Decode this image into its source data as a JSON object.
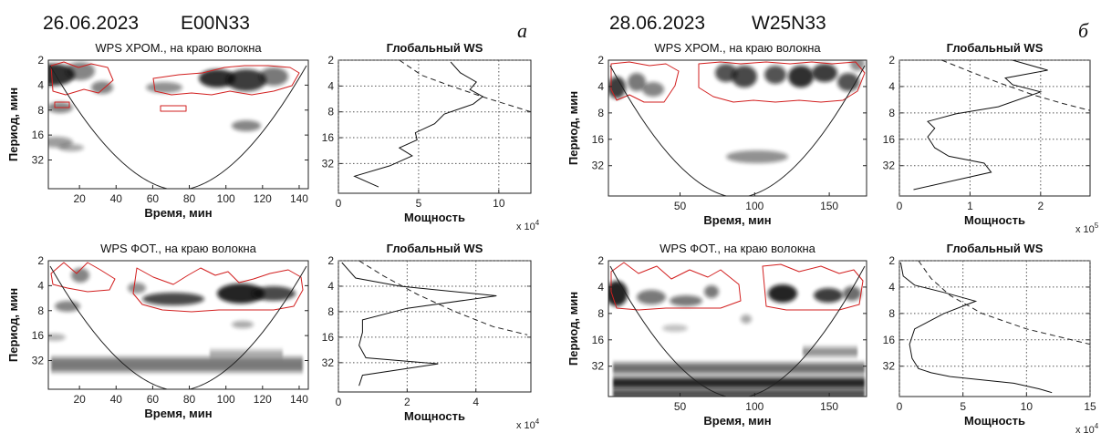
{
  "panels": [
    {
      "date": "26.06.2023",
      "region": "E00N33",
      "letter": "а",
      "wps": [
        {
          "title": "WPS  ХРОМ., на краю волокна",
          "xlabel": "Время, мин",
          "ylabel": "Период, мин",
          "xticks": [
            20,
            40,
            60,
            80,
            100,
            120,
            140
          ],
          "yticks": [
            2,
            4,
            8,
            16,
            32
          ],
          "xlim": [
            3,
            145
          ]
        },
        {
          "title": "WPS  ФОТ., на краю волокна",
          "xlabel": "Время, мин",
          "ylabel": "Период, мин",
          "xticks": [
            20,
            40,
            60,
            80,
            100,
            120,
            140
          ],
          "yticks": [
            2,
            4,
            8,
            16,
            32
          ],
          "xlim": [
            3,
            145
          ]
        }
      ],
      "global": [
        {
          "title": "Глобальный WS",
          "xlabel": "Мощность",
          "multiplier": "x 10",
          "exponent": "4",
          "xticks": [
            0,
            5,
            10
          ],
          "xlim": [
            0,
            12
          ]
        },
        {
          "title": "Глобальный WS",
          "xlabel": "Мощность",
          "multiplier": "x 10",
          "exponent": "4",
          "xticks": [
            0,
            2,
            4
          ],
          "xlim": [
            0,
            5.6
          ]
        }
      ]
    },
    {
      "date": "28.06.2023",
      "region": "W25N33",
      "letter": "б",
      "wps": [
        {
          "title": "WPS  ХРОМ., на краю волокна",
          "xlabel": "Время, мин",
          "ylabel": "Период, мин",
          "xticks": [
            50,
            100,
            150
          ],
          "yticks": [
            2,
            4,
            8,
            16,
            32
          ],
          "xlim": [
            2,
            175
          ]
        },
        {
          "title": "WPS  ФОТ., на краю волокна",
          "xlabel": "Время, мин",
          "ylabel": "Период, мин",
          "xticks": [
            50,
            100,
            150
          ],
          "yticks": [
            2,
            4,
            8,
            16,
            32
          ],
          "xlim": [
            2,
            175
          ]
        }
      ],
      "global": [
        {
          "title": "Глобальный WS",
          "xlabel": "Мощность",
          "multiplier": "x 10",
          "exponent": "5",
          "xticks": [
            0,
            1,
            2
          ],
          "xlim": [
            0,
            2.7
          ]
        },
        {
          "title": "Глобальный WS",
          "xlabel": "Мощность",
          "multiplier": "x 10",
          "exponent": "4",
          "xticks": [
            0,
            5,
            10,
            15
          ],
          "xlim": [
            0,
            15
          ]
        }
      ]
    }
  ],
  "chart_data": [
    {
      "type": "line",
      "title": "Глобальный WS",
      "xlabel": "Мощность",
      "ylabel": "Период, мин",
      "series": [
        {
          "power_x1e4": [
            2.5,
            1.0,
            3.2,
            4.6,
            3.8,
            4.9,
            4.8,
            6.0,
            6.6,
            8.4,
            9.0,
            8.2,
            8.6,
            7.6,
            7.0
          ],
          "period_min": [
            60,
            45,
            34,
            26,
            21,
            17,
            14,
            11,
            8.5,
            6.5,
            5.3,
            4.4,
            3.6,
            2.8,
            2.1
          ]
        }
      ],
      "significance": {
        "power_x1e4": [
          3.8,
          5.2,
          7.0,
          9.2,
          11.0,
          12.0
        ],
        "period_min": [
          2,
          3,
          4,
          5.5,
          7,
          8
        ]
      }
    },
    {
      "type": "line",
      "title": "Глобальный WS",
      "xlabel": "Мощность",
      "ylabel": "Период, мин",
      "series": [
        {
          "power_x1e4": [
            0.6,
            0.7,
            2.9,
            0.8,
            0.6,
            0.7,
            0.7,
            2.0,
            4.6,
            1.8,
            0.5,
            0.1
          ],
          "period_min": [
            60,
            45,
            33,
            28,
            20,
            14,
            10,
            7.3,
            5.2,
            4.0,
            3.2,
            2.1
          ]
        }
      ],
      "significance": {
        "power_x1e4": [
          0.6,
          1.3,
          2.3,
          3.4,
          4.5,
          5.5
        ],
        "period_min": [
          2,
          3,
          5,
          8,
          12,
          15
        ]
      }
    },
    {
      "type": "line",
      "title": "Глобальный WS",
      "xlabel": "Мощность",
      "ylabel": "Период, мин",
      "series": [
        {
          "power_x1e5": [
            0.2,
            1.3,
            1.2,
            0.7,
            0.5,
            0.4,
            0.5,
            0.4,
            0.8,
            1.4,
            2.0,
            1.6,
            1.5,
            2.1,
            1.6
          ],
          "period_min": [
            60,
            38,
            30,
            25,
            20,
            15,
            12,
            10,
            8.2,
            6.8,
            4.6,
            3.8,
            3.2,
            2.6,
            2.0
          ]
        }
      ],
      "significance": {
        "power_x1e5": [
          0.6,
          1.0,
          1.4,
          1.9,
          2.3,
          2.7
        ],
        "period_min": [
          2,
          2.7,
          3.6,
          5,
          6.2,
          7.5
        ]
      }
    },
    {
      "type": "line",
      "title": "Глобальный WS",
      "xlabel": "Мощность",
      "ylabel": "Период, мин",
      "series": [
        {
          "power_x1e4": [
            12,
            11,
            9,
            4,
            2.5,
            1.5,
            1.0,
            0.8,
            1.2,
            3.5,
            6.0,
            3.5,
            1.2,
            0.3,
            0.1
          ],
          "period_min": [
            64,
            58,
            50,
            42,
            38,
            34,
            26,
            18,
            12,
            8,
            5.8,
            4.6,
            3.8,
            3.0,
            2.1
          ]
        }
      ],
      "significance": {
        "power_x1e4": [
          1.5,
          2.5,
          4.0,
          6.5,
          10.0,
          15.0
        ],
        "period_min": [
          2,
          3.2,
          5,
          8,
          12,
          18
        ]
      }
    }
  ]
}
